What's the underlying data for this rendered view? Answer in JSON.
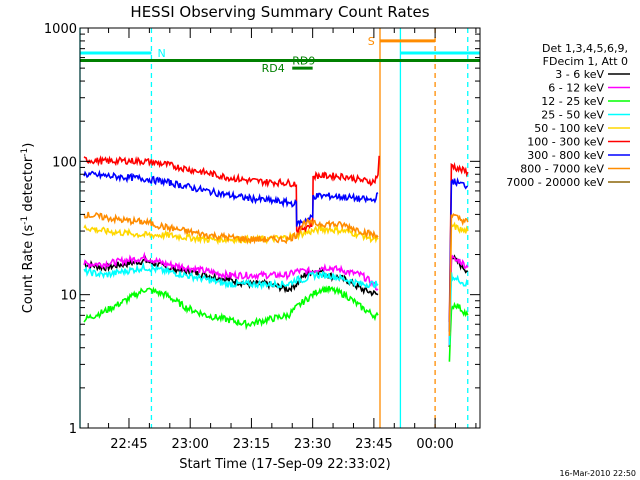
{
  "chart_data": {
    "type": "line",
    "title": "HESSI Observing Summary Count Rates",
    "ylabel": "Count Rate (s⁻¹ detector⁻¹)",
    "ylabel_parts": {
      "prefix": "Count Rate (s",
      "exp1": "-1",
      "middle": " detector",
      "exp2": "-1",
      "suffix": ")"
    },
    "xlabel": "Start Time (17-Sep-09 22:33:02)",
    "y_scale": "log",
    "ylim": [
      1,
      1000
    ],
    "y_ticks": [
      1,
      10,
      100,
      1000
    ],
    "y_tick_labels": [
      "1",
      "10",
      "100",
      "1000"
    ],
    "x_unit": "minutes after 22:33:02",
    "xlim": [
      0,
      98
    ],
    "x_ticks": [
      {
        "t": 12,
        "label": "22:45"
      },
      {
        "t": 27,
        "label": "23:00"
      },
      {
        "t": 42,
        "label": "23:15"
      },
      {
        "t": 57,
        "label": "23:30"
      },
      {
        "t": 72,
        "label": "23:45"
      },
      {
        "t": 87,
        "label": "00:00"
      }
    ],
    "legend_header": [
      "Det 1,3,4,5,6,9,",
      "FDecim 1, Att 0"
    ],
    "legend_placement": "right, outside plot",
    "footer_date": "16-Mar-2010 22:50",
    "flags": [
      {
        "label": "N",
        "color": "#00ffff",
        "y": 650
      },
      {
        "label": "S",
        "color": "#ff8c00",
        "y": 800
      },
      {
        "label": "RD9",
        "color": "#008000",
        "y": 570
      },
      {
        "label": "RD4",
        "color": "#008000",
        "y": 500
      }
    ],
    "vertical_markers": [
      {
        "t": 0,
        "color": "#00ffff",
        "style": "solid"
      },
      {
        "t": 17.5,
        "color": "#00ffff",
        "style": "dashed"
      },
      {
        "t": 73.5,
        "color": "#ff8c00",
        "style": "solid"
      },
      {
        "t": 78.5,
        "color": "#00ffff",
        "style": "solid"
      },
      {
        "t": 87,
        "color": "#ff8c00",
        "style": "dashed"
      },
      {
        "t": 95,
        "color": "#00ffff",
        "style": "dashed"
      }
    ],
    "series": [
      {
        "name": "3 - 6 keV",
        "color": "#000000",
        "segments": [
          {
            "t": [
              1,
              6,
              11,
              16,
              21,
              26,
              31,
              36,
              41,
              46,
              51,
              53,
              55,
              57,
              59,
              61,
              65,
              69,
              73
            ],
            "v": [
              17,
              16,
              17,
              18,
              16,
              15,
              14,
              13,
              12,
              12,
              11,
              12,
              14,
              15,
              15,
              14,
              13,
              11,
              10
            ]
          },
          {
            "t": [
              90.5,
              91,
              92,
              93,
              94,
              95
            ],
            "v": [
              4,
              20,
              18,
              17,
              16,
              15
            ]
          }
        ]
      },
      {
        "name": "6 - 12 keV",
        "color": "#ff00ff",
        "segments": [
          {
            "t": [
              1,
              6,
              11,
              16,
              21,
              26,
              31,
              36,
              41,
              46,
              51,
              53,
              55,
              57,
              59,
              61,
              65,
              69,
              72,
              73
            ],
            "v": [
              17,
              17,
              18,
              19,
              17,
              16,
              15,
              14,
              14,
              14,
              14,
              15,
              15,
              15,
              16,
              16,
              15,
              14,
              12,
              11
            ]
          },
          {
            "t": [
              90.5,
              91,
              92,
              93,
              94,
              95
            ],
            "v": [
              4,
              19,
              18,
              18,
              17,
              16
            ]
          }
        ]
      },
      {
        "name": "12 - 25 keV",
        "color": "#00ff00",
        "segments": [
          {
            "t": [
              1,
              6,
              11,
              16,
              21,
              26,
              31,
              36,
              41,
              46,
              51,
              53,
              55,
              57,
              59,
              61,
              65,
              69,
              72,
              73
            ],
            "v": [
              6.5,
              7.5,
              9,
              11,
              10,
              8,
              7,
              6.5,
              6,
              6.5,
              7,
              8,
              9,
              10,
              11,
              11,
              10,
              8,
              7,
              7
            ]
          },
          {
            "t": [
              90.5,
              91,
              92,
              93,
              94,
              95
            ],
            "v": [
              3,
              8,
              8.5,
              8,
              7.5,
              7
            ]
          }
        ]
      },
      {
        "name": "25 - 50 keV",
        "color": "#00ffff",
        "segments": [
          {
            "t": [
              1,
              6,
              11,
              16,
              21,
              26,
              31,
              36,
              41,
              46,
              51,
              53,
              55,
              57,
              59,
              61,
              65,
              69,
              72,
              73
            ],
            "v": [
              15,
              14,
              15,
              16,
              15,
              14,
              13,
              12,
              12,
              12,
              12,
              13,
              13,
              14,
              14,
              14,
              13,
              12,
              12,
              12
            ]
          },
          {
            "t": [
              90.5,
              91,
              92,
              93,
              94,
              95
            ],
            "v": [
              4,
              14,
              13,
              13,
              12,
              12
            ]
          }
        ]
      },
      {
        "name": "50 - 100 keV",
        "color": "#ffd700",
        "segments": [
          {
            "t": [
              1,
              6,
              11,
              16,
              21,
              26,
              31,
              36,
              41,
              46,
              51,
              53,
              55,
              57,
              59,
              61,
              65,
              69,
              72,
              73
            ],
            "v": [
              32,
              30,
              29,
              28,
              28,
              27,
              26,
              26,
              26,
              26,
              27,
              28,
              29,
              30,
              31,
              31,
              30,
              28,
              26,
              26
            ]
          },
          {
            "t": [
              90.5,
              91,
              92,
              93,
              94,
              95
            ],
            "v": [
              5,
              33,
              32,
              31,
              30,
              30
            ]
          }
        ]
      },
      {
        "name": "100 - 300 keV",
        "color": "#ff0000",
        "segments": [
          {
            "t": [
              1,
              6,
              11,
              16,
              21,
              26,
              31,
              36,
              41,
              46,
              51,
              53,
              53.1,
              55,
              57,
              57.1,
              59,
              61,
              65,
              69,
              72,
              73,
              73.3
            ],
            "v": [
              103,
              100,
              101,
              100,
              95,
              88,
              82,
              76,
              72,
              70,
              69,
              68,
              30,
              32,
              34,
              78,
              78,
              78,
              77,
              72,
              70,
              80,
              110
            ]
          },
          {
            "t": [
              90.5,
              91,
              92,
              93,
              94,
              95
            ],
            "v": [
              6,
              95,
              90,
              87,
              85,
              83
            ]
          }
        ]
      },
      {
        "name": "300 - 800 keV",
        "color": "#0000ff",
        "segments": [
          {
            "t": [
              1,
              6,
              11,
              16,
              21,
              26,
              31,
              36,
              41,
              46,
              51,
              53,
              53.1,
              55,
              57,
              57.1,
              59,
              61,
              65,
              69,
              72,
              73
            ],
            "v": [
              80,
              78,
              76,
              74,
              70,
              65,
              60,
              56,
              53,
              51,
              49,
              48,
              34,
              36,
              38,
              55,
              55,
              55,
              54,
              52,
              51,
              58
            ]
          },
          {
            "t": [
              90.5,
              91,
              92,
              93,
              94,
              95
            ],
            "v": [
              5,
              72,
              70,
              68,
              67,
              65
            ]
          }
        ]
      },
      {
        "name": "800 - 7000 keV",
        "color": "#ff8c00",
        "segments": [
          {
            "t": [
              1,
              6,
              11,
              16,
              21,
              26,
              31,
              36,
              41,
              46,
              51,
              53,
              55,
              57,
              59,
              61,
              65,
              69,
              72,
              73
            ],
            "v": [
              40,
              38,
              36,
              35,
              32,
              30,
              28,
              27,
              26,
              26,
              26,
              28,
              35,
              34,
              34,
              34,
              33,
              30,
              28,
              27
            ]
          },
          {
            "t": [
              90.5,
              91,
              92,
              93,
              94,
              95
            ],
            "v": [
              5,
              40,
              38,
              37,
              36,
              35
            ]
          }
        ]
      },
      {
        "name": "7000 - 20000 keV",
        "color": "#8b6508",
        "segments": []
      }
    ]
  }
}
